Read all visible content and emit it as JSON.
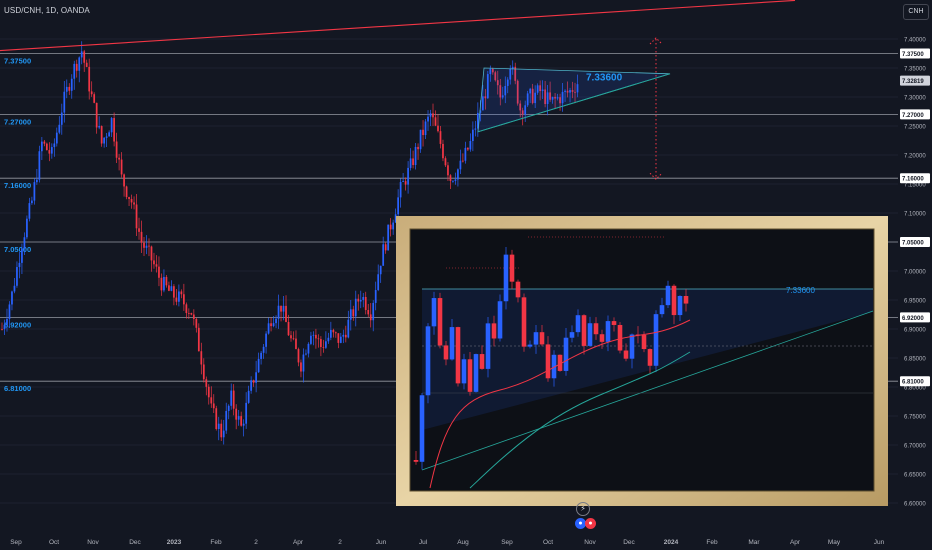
{
  "header": {
    "symbol": "USD/CNH, 1D, OANDA",
    "currency_button": "CNH"
  },
  "chart_data": {
    "type": "candlestick",
    "symbol": "USD/CNH",
    "interval": "1D",
    "source": "OANDA",
    "ylim": [
      6.6,
      7.43
    ],
    "yaxis_ticks": [
      "7.40000",
      "7.35000",
      "7.30000",
      "7.25000",
      "7.20000",
      "7.15000",
      "7.10000",
      "7.05000",
      "7.00000",
      "6.95000",
      "6.90000",
      "6.85000",
      "6.80000",
      "6.75000",
      "6.70000",
      "6.65000",
      "6.60000"
    ],
    "xaxis_ticks": [
      "Sep",
      "Oct",
      "Nov",
      "Dec",
      "2023",
      "Feb",
      "2",
      "Apr",
      "2",
      "Jun",
      "Jul",
      "Aug",
      "Sep",
      "Oct",
      "Nov",
      "Dec",
      "2024",
      "Feb",
      "Mar",
      "Apr",
      "May",
      "Jun"
    ],
    "horizontal_levels": [
      {
        "value": 7.375,
        "label": "7.37500"
      },
      {
        "value": 7.27,
        "label": "7.27000"
      },
      {
        "value": 7.16,
        "label": "7.16000"
      },
      {
        "value": 7.05,
        "label": "7.05000"
      },
      {
        "value": 6.92,
        "label": "6.92000"
      },
      {
        "value": 6.81,
        "label": "6.81000"
      }
    ],
    "current_price": {
      "value": 7.32819,
      "label": "7.32819"
    },
    "triangle_label": "7.33600",
    "inset_label": "7.33600",
    "price_path": [
      [
        0,
        6.9
      ],
      [
        6,
        6.96
      ],
      [
        12,
        7.05
      ],
      [
        18,
        7.12
      ],
      [
        24,
        7.22
      ],
      [
        30,
        7.2
      ],
      [
        36,
        7.28
      ],
      [
        42,
        7.34
      ],
      [
        46,
        7.38
      ],
      [
        50,
        7.3
      ],
      [
        54,
        7.22
      ],
      [
        58,
        7.26
      ],
      [
        62,
        7.16
      ],
      [
        66,
        7.12
      ],
      [
        70,
        7.05
      ],
      [
        74,
        7.02
      ],
      [
        78,
        6.98
      ],
      [
        82,
        6.96
      ],
      [
        86,
        6.95
      ],
      [
        90,
        6.93
      ],
      [
        94,
        6.85
      ],
      [
        98,
        6.76
      ],
      [
        102,
        6.72
      ],
      [
        106,
        6.78
      ],
      [
        110,
        6.73
      ],
      [
        114,
        6.8
      ],
      [
        118,
        6.86
      ],
      [
        122,
        6.92
      ],
      [
        126,
        6.94
      ],
      [
        130,
        6.88
      ],
      [
        134,
        6.84
      ],
      [
        138,
        6.9
      ],
      [
        142,
        6.87
      ],
      [
        146,
        6.89
      ],
      [
        150,
        6.88
      ],
      [
        154,
        6.92
      ],
      [
        158,
        6.96
      ],
      [
        162,
        6.93
      ],
      [
        166,
        7.02
      ],
      [
        170,
        7.08
      ],
      [
        174,
        7.14
      ],
      [
        178,
        7.18
      ],
      [
        182,
        7.23
      ],
      [
        186,
        7.27
      ],
      [
        190,
        7.22
      ],
      [
        194,
        7.16
      ],
      [
        198,
        7.18
      ],
      [
        202,
        7.22
      ],
      [
        206,
        7.28
      ],
      [
        210,
        7.34
      ],
      [
        214,
        7.3
      ],
      [
        218,
        7.36
      ],
      [
        222,
        7.28
      ],
      [
        226,
        7.3
      ],
      [
        230,
        7.31
      ],
      [
        234,
        7.29
      ],
      [
        238,
        7.3
      ],
      [
        242,
        7.31
      ],
      [
        246,
        7.33
      ]
    ],
    "trendline": {
      "from": [
        0,
        7.38
      ],
      "to": [
        320,
        7.47
      ]
    },
    "projection": {
      "from": 7.4,
      "to": 7.16,
      "style": "dotted"
    }
  }
}
